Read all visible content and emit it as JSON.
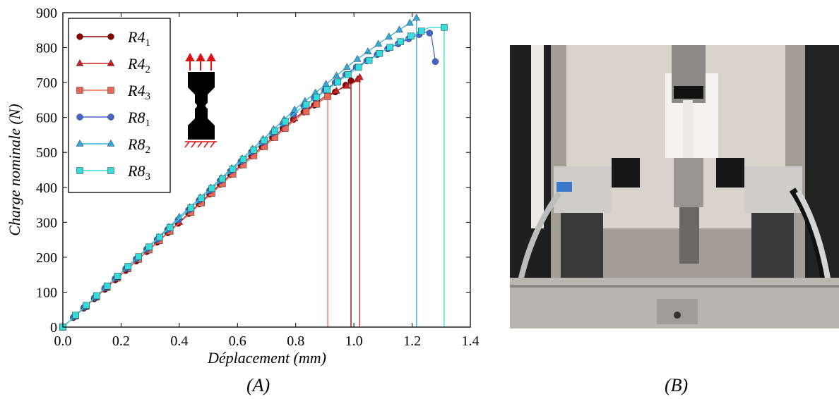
{
  "figure": {
    "caption_a": "(A)",
    "caption_b": "(B)"
  },
  "chart_data": {
    "type": "line",
    "xlabel": "Déplacement (mm)",
    "ylabel": "Charge nominale (N)",
    "xlim": [
      0.0,
      1.4
    ],
    "ylim": [
      0,
      900
    ],
    "x_ticks": [
      "0.0",
      "0.2",
      "0.4",
      "0.6",
      "0.8",
      "1.0",
      "1.2",
      "1.4"
    ],
    "y_ticks": [
      "0",
      "100",
      "200",
      "300",
      "400",
      "500",
      "600",
      "700",
      "800",
      "900"
    ],
    "grid": false,
    "legend_position": "top-left",
    "series": [
      {
        "name": "R4",
        "subscript": "1",
        "color": "#8b0000",
        "marker": "circle",
        "x": [
          0.0,
          0.2,
          0.4,
          0.6,
          0.8,
          0.9,
          0.95,
          0.985,
          0.99,
          0.99
        ],
        "y": [
          0,
          150,
          300,
          455,
          600,
          655,
          680,
          700,
          705,
          0
        ]
      },
      {
        "name": "R4",
        "subscript": "2",
        "color": "#cc2020",
        "marker": "triangle",
        "x": [
          0.0,
          0.2,
          0.4,
          0.6,
          0.8,
          0.9,
          1.0,
          1.02,
          1.02
        ],
        "y": [
          0,
          150,
          300,
          455,
          600,
          660,
          700,
          715,
          0
        ]
      },
      {
        "name": "R4",
        "subscript": "3",
        "color": "#ee6655",
        "marker": "square",
        "x": [
          0.0,
          0.2,
          0.4,
          0.6,
          0.8,
          0.9,
          0.91,
          0.91
        ],
        "y": [
          0,
          150,
          298,
          450,
          595,
          655,
          660,
          0
        ]
      },
      {
        "name": "R8",
        "subscript": "1",
        "color": "#4466cc",
        "marker": "circle",
        "x": [
          0.0,
          0.2,
          0.4,
          0.6,
          0.8,
          1.0,
          1.1,
          1.2,
          1.25,
          1.265,
          1.28
        ],
        "y": [
          0,
          155,
          310,
          465,
          615,
          740,
          790,
          830,
          845,
          840,
          760
        ]
      },
      {
        "name": "R8",
        "subscript": "2",
        "color": "#33aadd",
        "marker": "triangle",
        "x": [
          0.0,
          0.2,
          0.4,
          0.6,
          0.8,
          1.0,
          1.1,
          1.2,
          1.215,
          1.215
        ],
        "y": [
          0,
          155,
          315,
          470,
          625,
          760,
          820,
          875,
          885,
          0
        ]
      },
      {
        "name": "R8",
        "subscript": "3",
        "color": "#33dddd",
        "marker": "square",
        "x": [
          0.0,
          0.2,
          0.4,
          0.6,
          0.8,
          1.0,
          1.1,
          1.2,
          1.26,
          1.3,
          1.31,
          1.31
        ],
        "y": [
          0,
          155,
          310,
          465,
          615,
          735,
          790,
          835,
          858,
          858,
          858,
          0
        ]
      }
    ]
  }
}
